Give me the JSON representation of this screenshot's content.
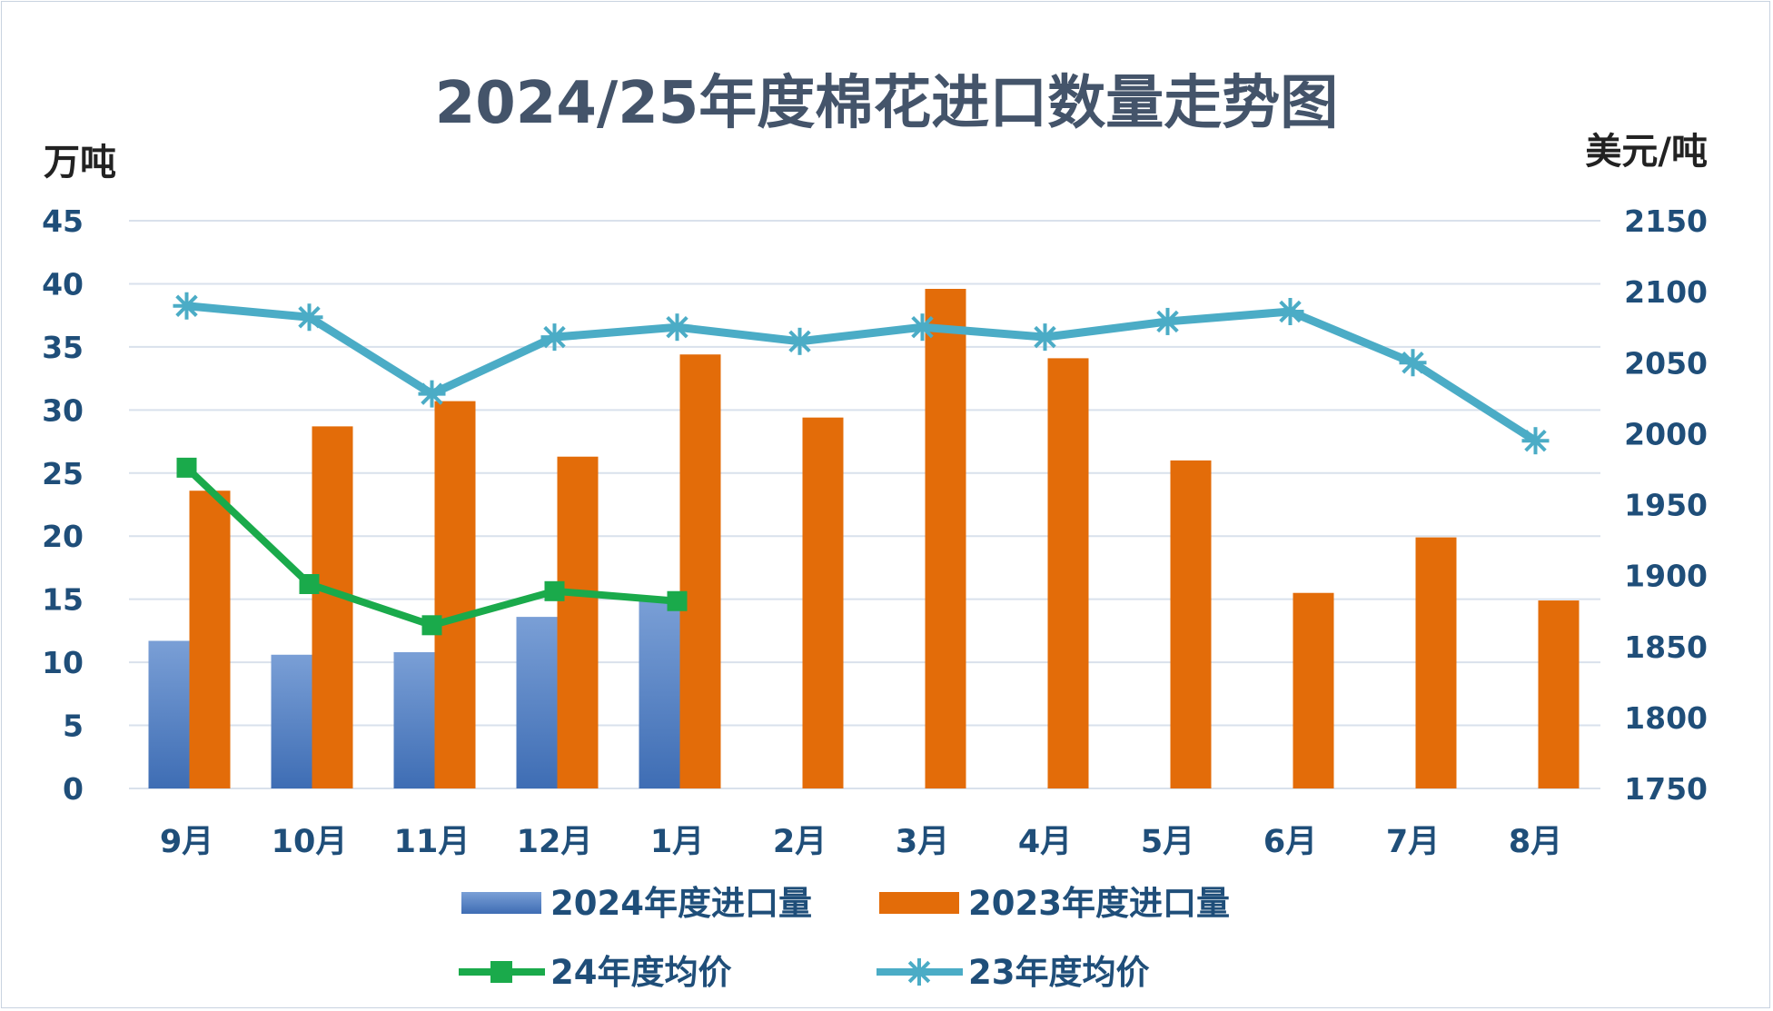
{
  "chart_data": {
    "type": "bar",
    "title": "2024/25年度棉花进口数量走势图",
    "ylabel": "万吨",
    "y2label": "美元/吨",
    "ylim": [
      0,
      45
    ],
    "y2lim": [
      1750,
      2150
    ],
    "yticks": [
      "0",
      "5",
      "10",
      "15",
      "20",
      "25",
      "30",
      "35",
      "40",
      "45"
    ],
    "y2ticks": [
      "1750",
      "1800",
      "1850",
      "1900",
      "1950",
      "2000",
      "2050",
      "2100",
      "2150"
    ],
    "grid": true,
    "legend_position": "bottom",
    "categories": [
      "9月",
      "10月",
      "11月",
      "12月",
      "1月",
      "2月",
      "3月",
      "4月",
      "5月",
      "6月",
      "7月",
      "8月"
    ],
    "series": [
      {
        "name": "2024年度进口量",
        "type": "bar",
        "axis": "left",
        "color": "#4472c4",
        "values": [
          11.7,
          10.6,
          10.8,
          13.6,
          15.0,
          null,
          null,
          null,
          null,
          null,
          null,
          null
        ]
      },
      {
        "name": "2023年度进口量",
        "type": "bar",
        "axis": "left",
        "color": "#e36c09",
        "values": [
          23.6,
          28.7,
          30.7,
          26.3,
          34.4,
          29.4,
          39.6,
          34.1,
          26.0,
          15.5,
          19.9,
          14.9
        ]
      },
      {
        "name": "24年度均价",
        "type": "line",
        "axis": "right",
        "color": "#1aaa4b",
        "marker": "square",
        "values": [
          1976,
          1894,
          1865,
          1889,
          1882,
          null,
          null,
          null,
          null,
          null,
          null,
          null
        ]
      },
      {
        "name": "23年度均价",
        "type": "line",
        "axis": "right",
        "color": "#4bacc6",
        "marker": "star",
        "values": [
          2090,
          2082,
          2028,
          2068,
          2075,
          2065,
          2075,
          2068,
          2079,
          2086,
          2050,
          1995
        ]
      }
    ]
  }
}
